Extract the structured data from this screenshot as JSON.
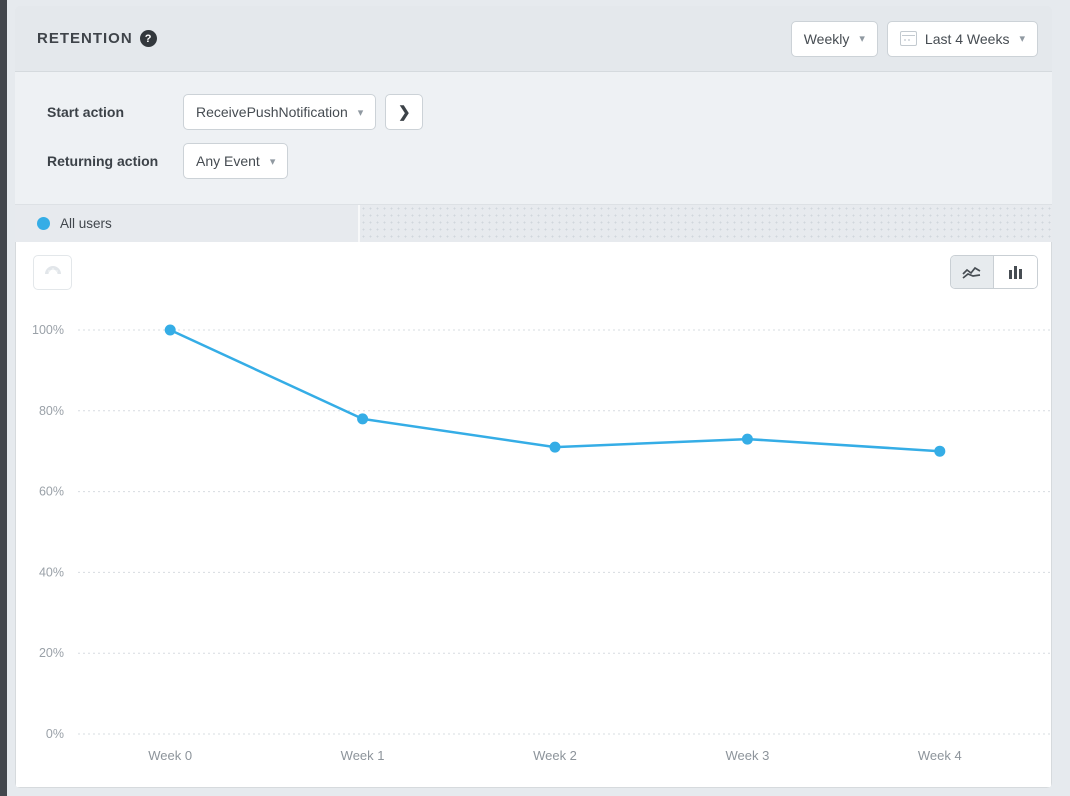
{
  "header": {
    "title": "RETENTION",
    "granularity": "Weekly",
    "date_range": "Last 4 Weeks"
  },
  "icons": {
    "help": "?",
    "caret_down": "▾",
    "chevron_right": "❯"
  },
  "filters": {
    "start_label": "Start action",
    "start_value": "ReceivePushNotification",
    "returning_label": "Returning action",
    "returning_value": "Any Event"
  },
  "segment_tab": {
    "label": "All users",
    "dot_color": "#35ade6"
  },
  "colors": {
    "accent_blue": "#35ade6",
    "grid": "#d7dce1",
    "panel_bg": "#ffffff",
    "page_bg": "#eef1f4"
  },
  "chart_data": {
    "type": "line",
    "categories": [
      "Week 0",
      "Week 1",
      "Week 2",
      "Week 3",
      "Week 4"
    ],
    "series": [
      {
        "name": "All users",
        "values": [
          100,
          78,
          71,
          73,
          70
        ],
        "color": "#35ade6"
      }
    ],
    "title": "",
    "xlabel": "",
    "ylabel": "",
    "ylim": [
      0,
      100
    ],
    "yticks": [
      0,
      20,
      40,
      60,
      80,
      100
    ],
    "ytick_format": "percent",
    "grid": "horizontal-dashed",
    "legend": "none"
  }
}
